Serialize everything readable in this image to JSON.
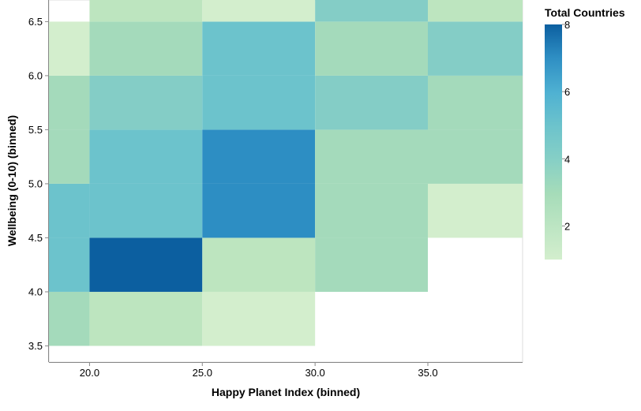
{
  "chart_data": {
    "type": "heatmap",
    "title": "",
    "xlabel": "Happy Planet Index (binned)",
    "ylabel": "Wellbeing (0-10) (binned)",
    "x_bin_edges": [
      15,
      20,
      25,
      30,
      35,
      40
    ],
    "y_bin_edges": [
      3.5,
      4.0,
      4.5,
      5.0,
      5.5,
      6.0,
      6.5,
      7.0
    ],
    "x_domain": [
      18.2,
      39.2
    ],
    "y_domain": [
      3.35,
      6.7
    ],
    "x_ticks": [
      "20.0",
      "25.0",
      "30.0",
      "35.0"
    ],
    "x_tick_values": [
      20,
      25,
      30,
      35
    ],
    "y_ticks": [
      "3.5",
      "4.0",
      "4.5",
      "5.0",
      "5.5",
      "6.0",
      "6.5"
    ],
    "y_tick_values": [
      3.5,
      4.0,
      4.5,
      5.0,
      5.5,
      6.0,
      6.5
    ],
    "cells": [
      {
        "x_bin": [
          15,
          20
        ],
        "y_bin": [
          3.5,
          4.0
        ],
        "count": 3
      },
      {
        "x_bin": [
          20,
          25
        ],
        "y_bin": [
          3.5,
          4.0
        ],
        "count": 2
      },
      {
        "x_bin": [
          25,
          30
        ],
        "y_bin": [
          3.5,
          4.0
        ],
        "count": 1
      },
      {
        "x_bin": [
          15,
          20
        ],
        "y_bin": [
          4.0,
          4.5
        ],
        "count": 5
      },
      {
        "x_bin": [
          20,
          25
        ],
        "y_bin": [
          4.0,
          4.5
        ],
        "count": 8
      },
      {
        "x_bin": [
          25,
          30
        ],
        "y_bin": [
          4.0,
          4.5
        ],
        "count": 2
      },
      {
        "x_bin": [
          30,
          35
        ],
        "y_bin": [
          4.0,
          4.5
        ],
        "count": 3
      },
      {
        "x_bin": [
          15,
          20
        ],
        "y_bin": [
          4.5,
          5.0
        ],
        "count": 5
      },
      {
        "x_bin": [
          20,
          25
        ],
        "y_bin": [
          4.5,
          5.0
        ],
        "count": 5
      },
      {
        "x_bin": [
          25,
          30
        ],
        "y_bin": [
          4.5,
          5.0
        ],
        "count": 7
      },
      {
        "x_bin": [
          30,
          35
        ],
        "y_bin": [
          4.5,
          5.0
        ],
        "count": 3
      },
      {
        "x_bin": [
          35,
          40
        ],
        "y_bin": [
          4.5,
          5.0
        ],
        "count": 1
      },
      {
        "x_bin": [
          15,
          20
        ],
        "y_bin": [
          5.0,
          5.5
        ],
        "count": 3
      },
      {
        "x_bin": [
          20,
          25
        ],
        "y_bin": [
          5.0,
          5.5
        ],
        "count": 5
      },
      {
        "x_bin": [
          25,
          30
        ],
        "y_bin": [
          5.0,
          5.5
        ],
        "count": 7
      },
      {
        "x_bin": [
          30,
          35
        ],
        "y_bin": [
          5.0,
          5.5
        ],
        "count": 3
      },
      {
        "x_bin": [
          35,
          40
        ],
        "y_bin": [
          5.0,
          5.5
        ],
        "count": 3
      },
      {
        "x_bin": [
          15,
          20
        ],
        "y_bin": [
          5.5,
          6.0
        ],
        "count": 3
      },
      {
        "x_bin": [
          20,
          25
        ],
        "y_bin": [
          5.5,
          6.0
        ],
        "count": 4
      },
      {
        "x_bin": [
          25,
          30
        ],
        "y_bin": [
          5.5,
          6.0
        ],
        "count": 5
      },
      {
        "x_bin": [
          30,
          35
        ],
        "y_bin": [
          5.5,
          6.0
        ],
        "count": 4
      },
      {
        "x_bin": [
          35,
          40
        ],
        "y_bin": [
          5.5,
          6.0
        ],
        "count": 3
      },
      {
        "x_bin": [
          15,
          20
        ],
        "y_bin": [
          6.0,
          6.5
        ],
        "count": 1
      },
      {
        "x_bin": [
          20,
          25
        ],
        "y_bin": [
          6.0,
          6.5
        ],
        "count": 3
      },
      {
        "x_bin": [
          25,
          30
        ],
        "y_bin": [
          6.0,
          6.5
        ],
        "count": 5
      },
      {
        "x_bin": [
          30,
          35
        ],
        "y_bin": [
          6.0,
          6.5
        ],
        "count": 3
      },
      {
        "x_bin": [
          35,
          40
        ],
        "y_bin": [
          6.0,
          6.5
        ],
        "count": 4
      },
      {
        "x_bin": [
          20,
          25
        ],
        "y_bin": [
          6.5,
          7.0
        ],
        "count": 2
      },
      {
        "x_bin": [
          25,
          30
        ],
        "y_bin": [
          6.5,
          7.0
        ],
        "count": 1
      },
      {
        "x_bin": [
          30,
          35
        ],
        "y_bin": [
          6.5,
          7.0
        ],
        "count": 4
      },
      {
        "x_bin": [
          35,
          40
        ],
        "y_bin": [
          6.5,
          7.0
        ],
        "count": 2
      }
    ],
    "legend": {
      "title": "Total Countries",
      "placement": "right",
      "domain": [
        1,
        8
      ],
      "ticks": [
        "2",
        "4",
        "6",
        "8"
      ],
      "tick_values": [
        2,
        4,
        6,
        8
      ]
    },
    "color_scheme": "greenblue",
    "grid": false
  }
}
